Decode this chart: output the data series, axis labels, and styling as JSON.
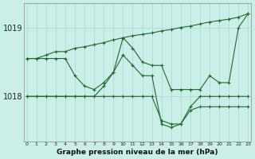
{
  "bg_color": "#caeee8",
  "grid_color": "#a8d8cc",
  "line_color": "#1e6b2a",
  "xlabel": "Graphe pression niveau de la mer (hPa)",
  "yticks": [
    1018,
    1019
  ],
  "ylim": [
    1017.35,
    1019.35
  ],
  "xlim": [
    -0.3,
    23.3
  ],
  "series": [
    [
      1018.55,
      1018.55,
      1018.6,
      1018.65,
      1018.65,
      1018.7,
      1018.72,
      1018.75,
      1018.78,
      1018.82,
      1018.85,
      1018.88,
      1018.9,
      1018.92,
      1018.95,
      1018.97,
      1019.0,
      1019.02,
      1019.05,
      1019.08,
      1019.1,
      1019.12,
      1019.15,
      1019.2
    ],
    [
      1018.55,
      1018.55,
      1018.55,
      1018.55,
      1018.55,
      1018.3,
      1018.15,
      1018.1,
      1018.2,
      1018.35,
      1018.85,
      1018.7,
      1018.5,
      1018.45,
      1018.45,
      1018.1,
      1018.1,
      1018.1,
      1018.1,
      1018.3,
      1018.2,
      1018.2,
      1019.0,
      1019.2
    ],
    [
      1018.0,
      1018.0,
      1018.0,
      1018.0,
      1018.0,
      1018.0,
      1018.0,
      1018.0,
      1018.15,
      1018.35,
      1018.6,
      1018.45,
      1018.3,
      1018.3,
      1017.6,
      1017.55,
      1017.6,
      1017.85,
      1018.0,
      1018.0,
      1018.0,
      1018.0,
      1018.0,
      1018.0
    ],
    [
      1018.0,
      1018.0,
      1018.0,
      1018.0,
      1018.0,
      1018.0,
      1018.0,
      1018.0,
      1018.0,
      1018.0,
      1018.0,
      1018.0,
      1018.0,
      1018.0,
      1017.65,
      1017.6,
      1017.6,
      1017.8,
      1017.85,
      1017.85,
      1017.85,
      1017.85,
      1017.85,
      1017.85
    ]
  ]
}
